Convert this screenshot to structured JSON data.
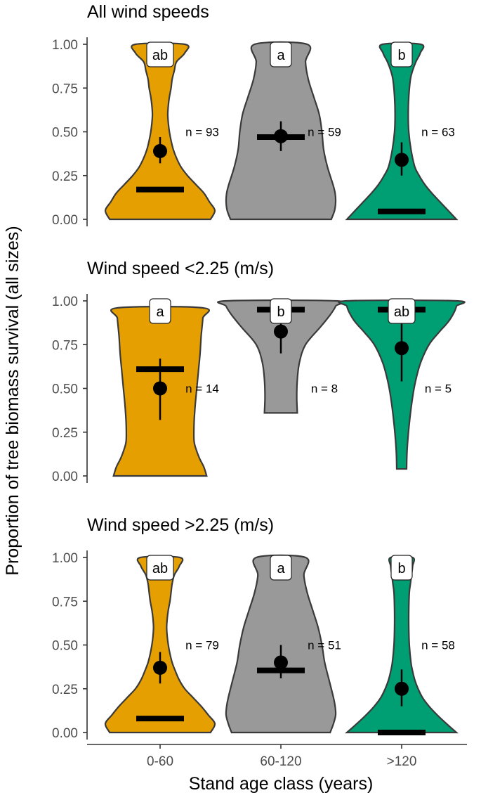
{
  "chart_data": {
    "type": "violin",
    "ylabel": "Proportion of tree biomass survival (all sizes)",
    "xlabel": "Stand age class (years)",
    "categories": [
      "0-60",
      "60-120",
      ">120"
    ],
    "ylim": [
      0,
      1
    ],
    "yticks": [
      "0.00",
      "0.25",
      "0.50",
      "0.75",
      "1.00"
    ],
    "grid": false,
    "colors": [
      "#E69F00",
      "#999999",
      "#009E73"
    ],
    "panels": [
      {
        "title": "All wind speeds",
        "groups": [
          {
            "category": "0-60",
            "min": 0,
            "max": 1.0,
            "median": 0.17,
            "mean": 0.39,
            "ci": [
              0.32,
              0.47
            ],
            "n_label": "n = 93",
            "letter": "ab",
            "density": [
              [
                0,
                0.92
              ],
              [
                0.05,
                1.0
              ],
              [
                0.1,
                0.9
              ],
              [
                0.15,
                0.8
              ],
              [
                0.2,
                0.65
              ],
              [
                0.25,
                0.5
              ],
              [
                0.3,
                0.38
              ],
              [
                0.35,
                0.3
              ],
              [
                0.4,
                0.24
              ],
              [
                0.45,
                0.2
              ],
              [
                0.5,
                0.17
              ],
              [
                0.55,
                0.15
              ],
              [
                0.6,
                0.14
              ],
              [
                0.65,
                0.15
              ],
              [
                0.7,
                0.17
              ],
              [
                0.75,
                0.2
              ],
              [
                0.8,
                0.22
              ],
              [
                0.85,
                0.26
              ],
              [
                0.9,
                0.3
              ],
              [
                0.95,
                0.45
              ],
              [
                1.0,
                0.45
              ]
            ]
          },
          {
            "category": "60-120",
            "min": 0,
            "max": 1.0,
            "median": 0.47,
            "mean": 0.475,
            "ci": [
              0.39,
              0.56
            ],
            "n_label": "n = 59",
            "letter": "a",
            "density": [
              [
                0,
                0.92
              ],
              [
                0.05,
                0.98
              ],
              [
                0.1,
                1.0
              ],
              [
                0.15,
                0.99
              ],
              [
                0.2,
                0.95
              ],
              [
                0.3,
                0.85
              ],
              [
                0.4,
                0.78
              ],
              [
                0.5,
                0.75
              ],
              [
                0.6,
                0.7
              ],
              [
                0.7,
                0.6
              ],
              [
                0.8,
                0.5
              ],
              [
                0.9,
                0.45
              ],
              [
                1.0,
                0.48
              ]
            ]
          },
          {
            "category": ">120",
            "min": 0,
            "max": 1.0,
            "median": 0.045,
            "mean": 0.34,
            "ci": [
              0.25,
              0.44
            ],
            "n_label": "n = 63",
            "letter": "b",
            "density": [
              [
                0,
                1.0
              ],
              [
                0.05,
                0.85
              ],
              [
                0.1,
                0.7
              ],
              [
                0.15,
                0.55
              ],
              [
                0.2,
                0.42
              ],
              [
                0.25,
                0.32
              ],
              [
                0.3,
                0.24
              ],
              [
                0.4,
                0.17
              ],
              [
                0.5,
                0.13
              ],
              [
                0.6,
                0.12
              ],
              [
                0.7,
                0.13
              ],
              [
                0.8,
                0.16
              ],
              [
                0.85,
                0.2
              ],
              [
                0.9,
                0.26
              ],
              [
                0.95,
                0.34
              ],
              [
                1.0,
                0.35
              ]
            ]
          }
        ]
      },
      {
        "title": "Wind speed <2.25 (m/s)",
        "groups": [
          {
            "category": "0-60",
            "min": 0,
            "max": 0.96,
            "median": 0.61,
            "mean": 0.5,
            "ci": [
              0.32,
              0.67
            ],
            "n_label": "n = 14",
            "letter": "a",
            "density": [
              [
                0,
                0.85
              ],
              [
                0.05,
                0.8
              ],
              [
                0.1,
                0.72
              ],
              [
                0.15,
                0.66
              ],
              [
                0.2,
                0.62
              ],
              [
                0.3,
                0.62
              ],
              [
                0.4,
                0.64
              ],
              [
                0.5,
                0.67
              ],
              [
                0.6,
                0.7
              ],
              [
                0.7,
                0.73
              ],
              [
                0.8,
                0.75
              ],
              [
                0.9,
                0.78
              ],
              [
                0.96,
                0.78
              ]
            ]
          },
          {
            "category": "60-120",
            "min": 0.36,
            "max": 1.0,
            "median": 0.95,
            "mean": 0.825,
            "ci": [
              0.7,
              0.9
            ],
            "n_label": "n = 8",
            "letter": "b",
            "density": [
              [
                0.36,
                0.3
              ],
              [
                0.45,
                0.29
              ],
              [
                0.55,
                0.3
              ],
              [
                0.65,
                0.34
              ],
              [
                0.75,
                0.45
              ],
              [
                0.85,
                0.72
              ],
              [
                0.92,
                0.9
              ],
              [
                0.97,
                1.0
              ],
              [
                1.0,
                1.0
              ]
            ]
          },
          {
            "category": ">120",
            "min": 0.04,
            "max": 1.0,
            "median": 0.95,
            "mean": 0.73,
            "ci": [
              0.54,
              0.87
            ],
            "n_label": "n = 5",
            "letter": "ab",
            "density": [
              [
                0.04,
                0.09
              ],
              [
                0.15,
                0.1
              ],
              [
                0.3,
                0.14
              ],
              [
                0.45,
                0.2
              ],
              [
                0.55,
                0.26
              ],
              [
                0.65,
                0.35
              ],
              [
                0.75,
                0.5
              ],
              [
                0.82,
                0.68
              ],
              [
                0.88,
                0.85
              ],
              [
                0.93,
                0.95
              ],
              [
                0.97,
                1.0
              ],
              [
                1.0,
                1.0
              ]
            ]
          }
        ]
      },
      {
        "title": "Wind speed >2.25 (m/s)",
        "groups": [
          {
            "category": "0-60",
            "min": 0,
            "max": 1.0,
            "median": 0.08,
            "mean": 0.37,
            "ci": [
              0.28,
              0.46
            ],
            "n_label": "n = 79",
            "letter": "ab",
            "density": [
              [
                0,
                0.92
              ],
              [
                0.05,
                1.0
              ],
              [
                0.1,
                0.88
              ],
              [
                0.15,
                0.75
              ],
              [
                0.2,
                0.6
              ],
              [
                0.25,
                0.45
              ],
              [
                0.3,
                0.35
              ],
              [
                0.35,
                0.28
              ],
              [
                0.4,
                0.22
              ],
              [
                0.45,
                0.18
              ],
              [
                0.5,
                0.15
              ],
              [
                0.55,
                0.13
              ],
              [
                0.6,
                0.12
              ],
              [
                0.65,
                0.13
              ],
              [
                0.7,
                0.15
              ],
              [
                0.75,
                0.18
              ],
              [
                0.8,
                0.2
              ],
              [
                0.85,
                0.22
              ],
              [
                0.9,
                0.26
              ],
              [
                0.95,
                0.35
              ],
              [
                1.0,
                0.36
              ]
            ]
          },
          {
            "category": "60-120",
            "min": 0,
            "max": 1.0,
            "median": 0.355,
            "mean": 0.4,
            "ci": [
              0.31,
              0.5
            ],
            "n_label": "n = 51",
            "letter": "a",
            "density": [
              [
                0,
                0.9
              ],
              [
                0.05,
                0.96
              ],
              [
                0.1,
                1.0
              ],
              [
                0.15,
                0.99
              ],
              [
                0.2,
                0.96
              ],
              [
                0.3,
                0.88
              ],
              [
                0.4,
                0.8
              ],
              [
                0.5,
                0.75
              ],
              [
                0.6,
                0.68
              ],
              [
                0.7,
                0.58
              ],
              [
                0.8,
                0.48
              ],
              [
                0.9,
                0.42
              ],
              [
                1.0,
                0.45
              ]
            ]
          },
          {
            "category": ">120",
            "min": 0,
            "max": 1.0,
            "median": 0.0,
            "mean": 0.25,
            "ci": [
              0.15,
              0.36
            ],
            "n_label": "n = 58",
            "letter": "b",
            "density": [
              [
                0,
                1.0
              ],
              [
                0.05,
                0.82
              ],
              [
                0.1,
                0.65
              ],
              [
                0.15,
                0.5
              ],
              [
                0.2,
                0.38
              ],
              [
                0.25,
                0.3
              ],
              [
                0.3,
                0.24
              ],
              [
                0.35,
                0.2
              ],
              [
                0.4,
                0.17
              ],
              [
                0.5,
                0.14
              ],
              [
                0.6,
                0.13
              ],
              [
                0.7,
                0.13
              ],
              [
                0.8,
                0.14
              ],
              [
                0.85,
                0.16
              ],
              [
                0.9,
                0.18
              ],
              [
                0.95,
                0.2
              ],
              [
                1.0,
                0.2
              ]
            ]
          }
        ]
      }
    ]
  }
}
